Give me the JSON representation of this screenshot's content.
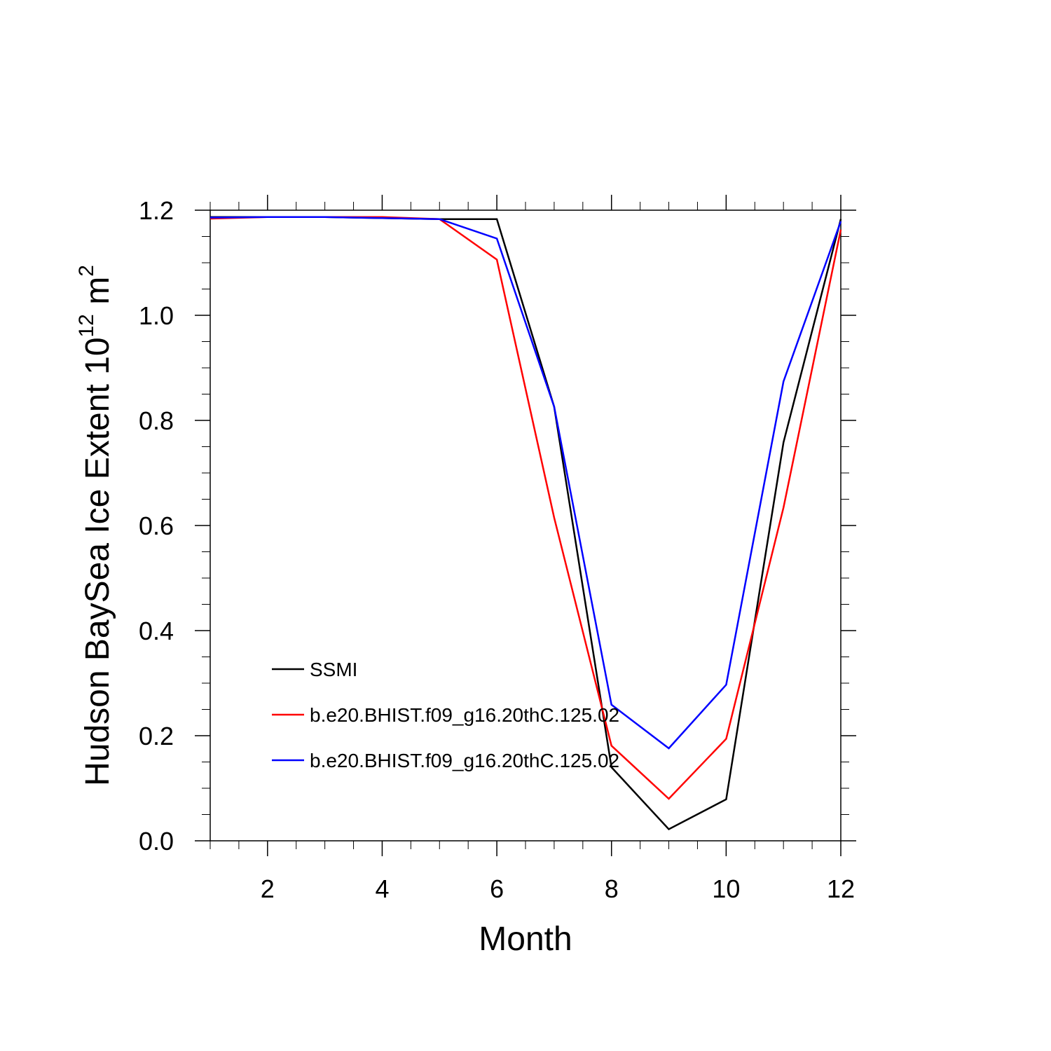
{
  "chart_data": {
    "type": "line",
    "xlabel": "Month",
    "ylabel": {
      "prefix": "Hudson BaySea Ice Extent 10",
      "exp1": "12",
      "unit": " m",
      "exp2": "2"
    },
    "xlim": [
      1,
      12
    ],
    "ylim": [
      0,
      1.2
    ],
    "x_ticks": [
      2,
      4,
      6,
      8,
      10,
      12
    ],
    "x_tick_labels": [
      "2",
      "4",
      "6",
      "8",
      "10",
      "12"
    ],
    "x_minor_step": 0.5,
    "y_ticks": [
      0,
      0.2,
      0.4,
      0.6,
      0.8,
      1.0,
      1.2
    ],
    "y_tick_labels": [
      "0.0",
      "0.2",
      "0.4",
      "0.6",
      "0.8",
      "1.0",
      "1.2"
    ],
    "y_minor_step": 0.05,
    "grid": false,
    "legend_position": "lower-left",
    "x": [
      1,
      2,
      3,
      4,
      5,
      6,
      7,
      8,
      9,
      10,
      11,
      12
    ],
    "series": [
      {
        "name": "SSMI",
        "color": "#000000",
        "values": [
          1.187,
          1.187,
          1.187,
          1.185,
          1.183,
          1.183,
          0.826,
          0.14,
          0.022,
          0.079,
          0.758,
          1.183
        ]
      },
      {
        "name": "b.e20.BHIST.f09_g16.20thC.125.02",
        "color": "#ff0000",
        "values": [
          1.184,
          1.187,
          1.187,
          1.187,
          1.183,
          1.106,
          0.615,
          0.181,
          0.08,
          0.194,
          0.634,
          1.163
        ]
      },
      {
        "name": "b.e20.BHIST.f09_g16.20thC.125.02",
        "color": "#0000ff",
        "values": [
          1.186,
          1.187,
          1.187,
          1.185,
          1.183,
          1.146,
          0.826,
          0.259,
          0.176,
          0.297,
          0.874,
          1.179
        ]
      }
    ]
  }
}
